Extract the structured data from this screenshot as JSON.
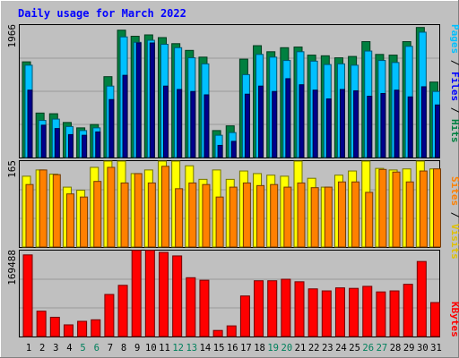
{
  "title": "Daily usage for March 2022",
  "colors": {
    "background": "#c0c0c0",
    "title": "#0000ff",
    "hits": "#008040",
    "files": "#00c0ff",
    "pages": "#00008b",
    "visits": "#ffff00",
    "sites": "#ff8000",
    "kbytes": "#ff0000",
    "weekend_label": "#00805c",
    "weekday_label": "#000000"
  },
  "chart_data": [
    {
      "type": "bar",
      "title": "Daily usage for March 2022",
      "ylabel_parts": [
        "Pages",
        "Files",
        "Hits"
      ],
      "ymax_label": "1966",
      "ylim": [
        0,
        1966
      ],
      "grid": true,
      "categories": [
        "1",
        "2",
        "3",
        "4",
        "5",
        "6",
        "7",
        "8",
        "9",
        "10",
        "11",
        "12",
        "13",
        "14",
        "15",
        "16",
        "17",
        "18",
        "19",
        "20",
        "21",
        "22",
        "23",
        "24",
        "25",
        "26",
        "27",
        "28",
        "29",
        "30",
        "31"
      ],
      "weekend_days": [
        "5",
        "6",
        "12",
        "13",
        "19",
        "20",
        "26",
        "27"
      ],
      "series": [
        {
          "name": "Hits",
          "values": [
            1420,
            660,
            650,
            520,
            440,
            490,
            1200,
            1890,
            1800,
            1820,
            1780,
            1690,
            1590,
            1490,
            400,
            470,
            1460,
            1660,
            1570,
            1630,
            1640,
            1520,
            1510,
            1480,
            1500,
            1720,
            1530,
            1520,
            1720,
            1930,
            1120
          ]
        },
        {
          "name": "Files",
          "values": [
            1370,
            550,
            570,
            460,
            400,
            440,
            1060,
            1790,
            1710,
            1740,
            1680,
            1630,
            1480,
            1390,
            330,
            370,
            1230,
            1530,
            1490,
            1440,
            1570,
            1430,
            1380,
            1390,
            1370,
            1580,
            1440,
            1410,
            1650,
            1860,
            980
          ]
        },
        {
          "name": "Pages",
          "values": [
            1000,
            480,
            430,
            340,
            330,
            380,
            860,
            1220,
            1700,
            1700,
            1060,
            1010,
            980,
            930,
            180,
            240,
            940,
            1060,
            980,
            1170,
            1080,
            1000,
            870,
            1010,
            990,
            910,
            950,
            1000,
            900,
            1050,
            780
          ]
        }
      ]
    },
    {
      "type": "bar",
      "ylabel_parts": [
        "Sites",
        "Visits"
      ],
      "ymax_label": "165",
      "ylim": [
        0,
        165
      ],
      "grid": true,
      "series": [
        {
          "name": "Visits",
          "values": [
            136,
            148,
            140,
            115,
            109,
            153,
            165,
            165,
            141,
            148,
            165,
            165,
            156,
            130,
            148,
            130,
            146,
            141,
            138,
            136,
            165,
            132,
            115,
            138,
            146,
            165,
            151,
            148,
            150,
            165,
            150
          ]
        },
        {
          "name": "Sites",
          "values": [
            120,
            148,
            139,
            102,
            96,
            126,
            153,
            123,
            141,
            123,
            155,
            112,
            123,
            120,
            96,
            115,
            123,
            118,
            120,
            115,
            123,
            114,
            115,
            125,
            125,
            105,
            149,
            144,
            125,
            146,
            150
          ]
        }
      ]
    },
    {
      "type": "bar",
      "ylabel_parts": [
        "KBytes"
      ],
      "ymax_label": "169488",
      "ylim": [
        0,
        169488
      ],
      "grid": true,
      "series": [
        {
          "name": "KBytes",
          "values": [
            161000,
            50000,
            38000,
            23000,
            30000,
            33000,
            83000,
            101000,
            170000,
            170000,
            166000,
            159000,
            116000,
            111000,
            12000,
            21000,
            80000,
            110000,
            110000,
            113000,
            108000,
            94000,
            90000,
            96000,
            95000,
            99000,
            88000,
            90000,
            103000,
            148000,
            67000
          ]
        }
      ]
    }
  ]
}
